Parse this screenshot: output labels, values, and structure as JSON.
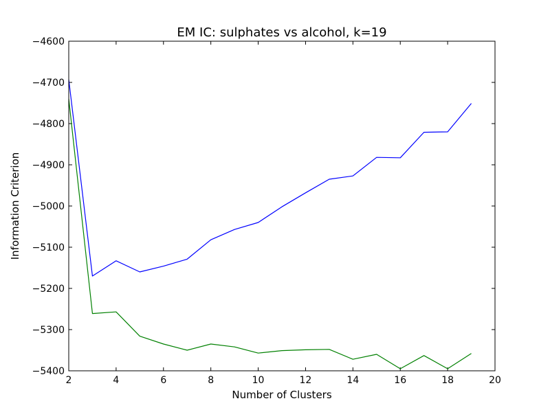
{
  "chart_data": {
    "type": "line",
    "title": "EM IC: sulphates vs alcohol, k=19",
    "xlabel": "Number of Clusters",
    "ylabel": "Information Criterion",
    "xlim": [
      2,
      20
    ],
    "ylim": [
      -5400,
      -4600
    ],
    "xticks": [
      2,
      4,
      6,
      8,
      10,
      12,
      14,
      16,
      18,
      20
    ],
    "yticks": [
      -4600,
      -4700,
      -4800,
      -4900,
      -5000,
      -5100,
      -5200,
      -5300,
      -5400
    ],
    "xtick_labels": [
      "2",
      "4",
      "6",
      "8",
      "10",
      "12",
      "14",
      "16",
      "18",
      "20"
    ],
    "ytick_labels": [
      "−4600",
      "−4700",
      "−4800",
      "−4900",
      "−5000",
      "−5100",
      "−5200",
      "−5300",
      "−5400"
    ],
    "grid": false,
    "x": [
      2,
      3,
      4,
      5,
      6,
      7,
      8,
      9,
      10,
      11,
      12,
      13,
      14,
      15,
      16,
      17,
      18,
      19
    ],
    "series": [
      {
        "color": "#0000ff",
        "values": [
          -4693,
          -5170,
          -5133,
          -5160,
          -5146,
          -5129,
          -5082,
          -5057,
          -5040,
          -5002,
          -4968,
          -4935,
          -4927,
          -4882,
          -4883,
          -4821,
          -4820,
          -4751
        ]
      },
      {
        "color": "#008000",
        "values": [
          -4740,
          -5261,
          -5257,
          -5316,
          -5335,
          -5350,
          -5335,
          -5342,
          -5357,
          -5351,
          -5349,
          -5348,
          -5372,
          -5360,
          -5395,
          -5363,
          -5395,
          -5358
        ]
      }
    ]
  }
}
